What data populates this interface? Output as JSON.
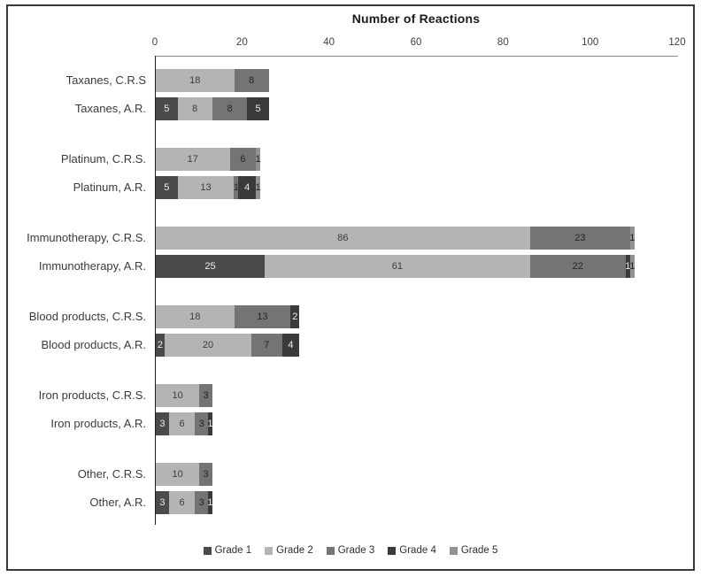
{
  "chart_data": {
    "type": "bar",
    "orientation": "horizontal",
    "stacked": true,
    "title": "Number of Reactions",
    "xlabel": "Number of Reactions",
    "grid": false,
    "legend_position": "bottom",
    "axis": {
      "min": 0,
      "max": 120,
      "ticks": [
        0,
        20,
        40,
        60,
        80,
        100,
        120
      ],
      "position": "top"
    },
    "categories": [
      "Taxanes, C.R.S",
      "Taxanes, A.R.",
      "Platinum, C.R.S.",
      "Platinum, A.R.",
      "Immunotherapy, C.R.S.",
      "Immunotherapy, A.R.",
      "Blood products, C.R.S.",
      "Blood products, A.R.",
      "Iron products, C.R.S.",
      "Iron products, A.R.",
      "Other, C.R.S.",
      "Other, A.R."
    ],
    "series": [
      {
        "name": "Grade 1",
        "color": "#4a4a4a",
        "label_color": "#ececec",
        "values": [
          0,
          5,
          0,
          5,
          0,
          25,
          0,
          2,
          0,
          3,
          0,
          3
        ]
      },
      {
        "name": "Grade 2",
        "color": "#b4b4b4",
        "label_color": "#3c3c3c",
        "values": [
          18,
          8,
          17,
          13,
          86,
          61,
          18,
          20,
          10,
          6,
          10,
          6
        ]
      },
      {
        "name": "Grade 3",
        "color": "#747474",
        "label_color": "#262626",
        "values": [
          8,
          8,
          6,
          1,
          23,
          22,
          13,
          7,
          3,
          3,
          3,
          3
        ]
      },
      {
        "name": "Grade 4",
        "color": "#3a3a3a",
        "label_color": "#ececec",
        "values": [
          0,
          5,
          0,
          4,
          0,
          1,
          2,
          4,
          0,
          1,
          0,
          1
        ]
      },
      {
        "name": "Grade 5",
        "color": "#929292",
        "label_color": "#262626",
        "values": [
          0,
          0,
          1,
          1,
          1,
          1,
          0,
          0,
          0,
          0,
          0,
          0
        ]
      }
    ],
    "row_totals": [
      26,
      26,
      24,
      24,
      110,
      110,
      33,
      33,
      13,
      13,
      13,
      13
    ]
  }
}
